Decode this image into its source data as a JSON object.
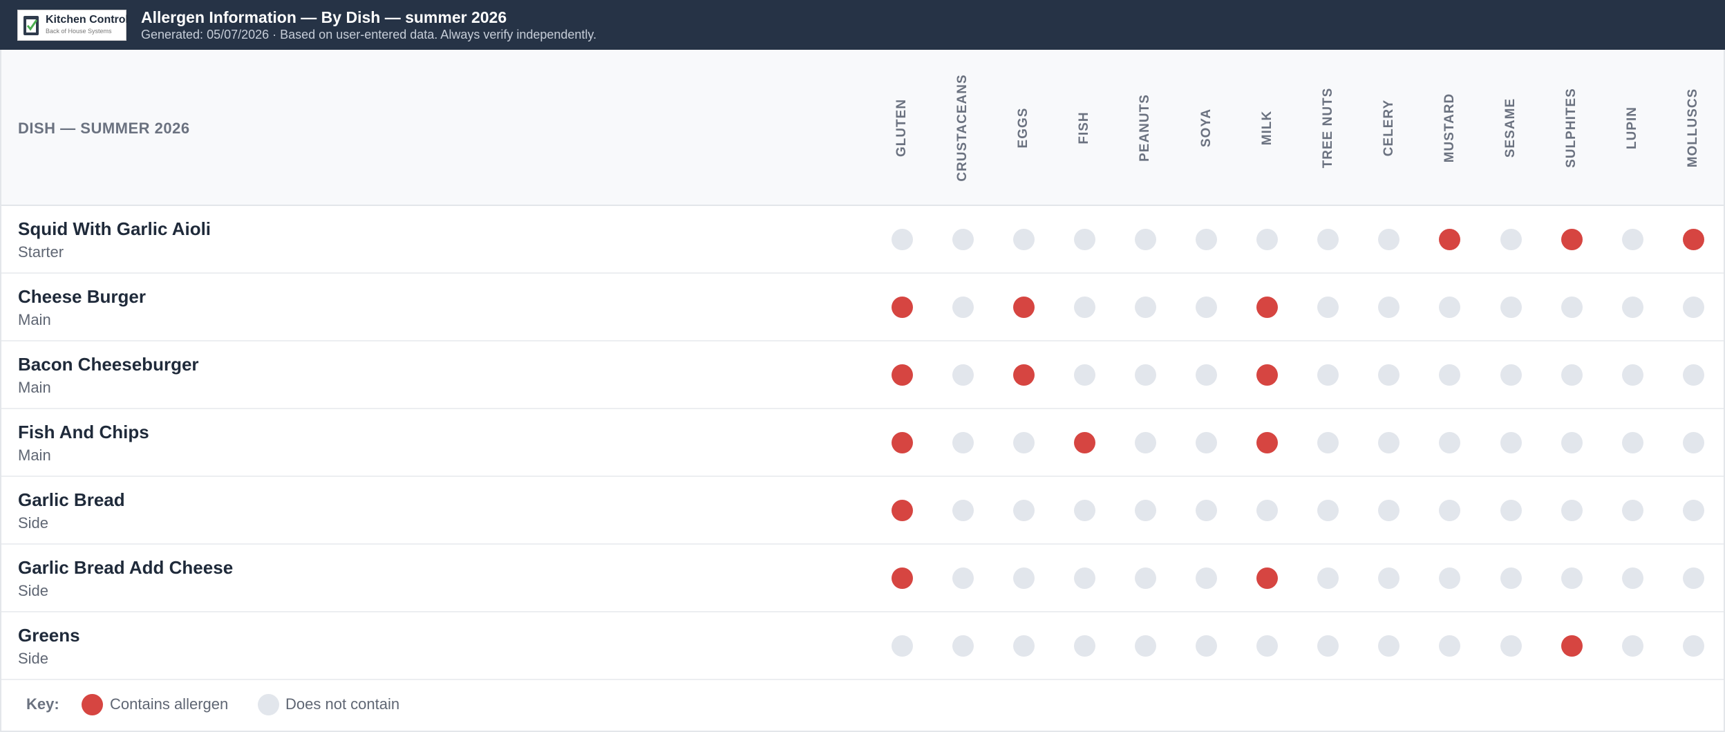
{
  "header": {
    "logo_title": "Kitchen Control",
    "logo_subtitle": "Back of House Systems",
    "title": "Allergen Information — By Dish — summer 2026",
    "subtitle": "Generated: 05/07/2026 · Based on user-entered data. Always verify independently."
  },
  "table": {
    "dish_header": "DISH — SUMMER 2026",
    "allergens": [
      "GLUTEN",
      "CRUSTACEANS",
      "EGGS",
      "FISH",
      "PEANUTS",
      "SOYA",
      "MILK",
      "TREE NUTS",
      "CELERY",
      "MUSTARD",
      "SESAME",
      "SULPHITES",
      "LUPIN",
      "MOLLUSCS"
    ],
    "rows": [
      {
        "dish": "Squid With Garlic Aioli",
        "category": "Starter",
        "contains": [
          false,
          false,
          false,
          false,
          false,
          false,
          false,
          false,
          false,
          true,
          false,
          true,
          false,
          true
        ]
      },
      {
        "dish": "Cheese Burger",
        "category": "Main",
        "contains": [
          true,
          false,
          true,
          false,
          false,
          false,
          true,
          false,
          false,
          false,
          false,
          false,
          false,
          false
        ]
      },
      {
        "dish": "Bacon Cheeseburger",
        "category": "Main",
        "contains": [
          true,
          false,
          true,
          false,
          false,
          false,
          true,
          false,
          false,
          false,
          false,
          false,
          false,
          false
        ]
      },
      {
        "dish": "Fish And Chips",
        "category": "Main",
        "contains": [
          true,
          false,
          false,
          true,
          false,
          false,
          true,
          false,
          false,
          false,
          false,
          false,
          false,
          false
        ]
      },
      {
        "dish": "Garlic Bread",
        "category": "Side",
        "contains": [
          true,
          false,
          false,
          false,
          false,
          false,
          false,
          false,
          false,
          false,
          false,
          false,
          false,
          false
        ]
      },
      {
        "dish": "Garlic Bread Add Cheese",
        "category": "Side",
        "contains": [
          true,
          false,
          false,
          false,
          false,
          false,
          true,
          false,
          false,
          false,
          false,
          false,
          false,
          false
        ]
      },
      {
        "dish": "Greens",
        "category": "Side",
        "contains": [
          false,
          false,
          false,
          false,
          false,
          false,
          false,
          false,
          false,
          false,
          false,
          true,
          false,
          false
        ]
      }
    ]
  },
  "key": {
    "label": "Key:",
    "contains": "Contains allergen",
    "not_contains": "Does not contain"
  },
  "colors": {
    "contains": "#d64541",
    "not_contains": "#e2e6ec"
  }
}
